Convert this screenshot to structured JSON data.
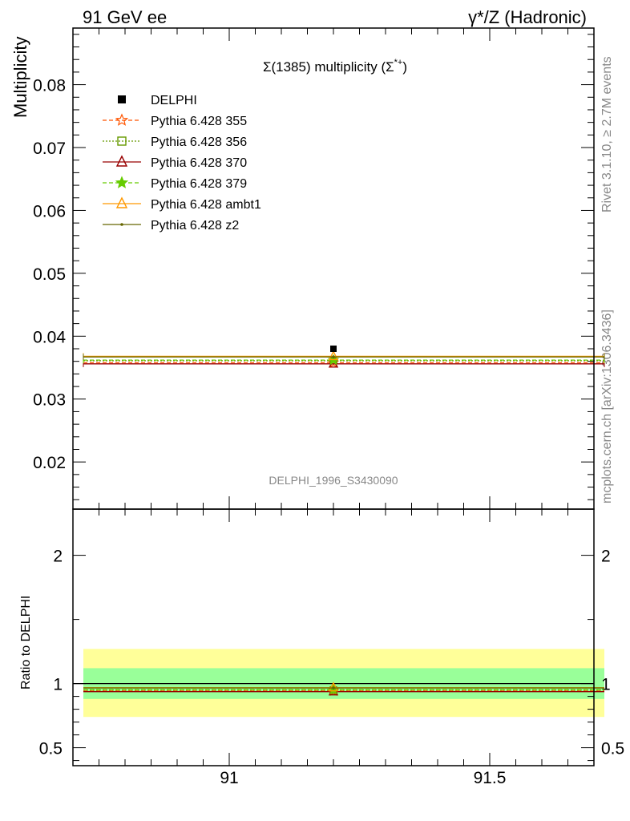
{
  "header": {
    "left": "91 GeV ee",
    "right": "γ*/Z (Hadronic)"
  },
  "side_text": {
    "rivet": "Rivet 3.1.10, ≥ 2.7M events",
    "mcplots": "mcplots.cern.ch [arXiv:1306.3436]"
  },
  "chart_data": {
    "type": "scatter",
    "title": "Σ(1385) multiplicity (Σ*+)",
    "title_main": "Σ(1385) multiplicity (Σ",
    "title_sup": "*+",
    "title_close": ")",
    "analysis_id": "DELPHI_1996_S3430090",
    "xlim": [
      90.7,
      91.7
    ],
    "ylabel": "Multiplicity",
    "ylim": [
      0.0125,
      0.089
    ],
    "yticks": [
      0.02,
      0.03,
      0.04,
      0.05,
      0.06,
      0.07,
      0.08
    ],
    "ytick_labels": [
      "0.02",
      "0.03",
      "0.04",
      "0.05",
      "0.06",
      "0.07",
      "0.08"
    ],
    "xticks": [
      91,
      91.5
    ],
    "xtick_labels": [
      "91",
      "91.5"
    ],
    "data": {
      "name": "DELPHI",
      "x": 91.2,
      "y": 0.038,
      "marker": "square",
      "color": "#000000"
    },
    "series": [
      {
        "name": "Pythia 6.428 355",
        "x_range": [
          90.72,
          91.72
        ],
        "y": 0.0358,
        "color": "#ff5500",
        "dash": "5,3",
        "marker": "star-open"
      },
      {
        "name": "Pythia 6.428 356",
        "x_range": [
          90.72,
          91.72
        ],
        "y": 0.0361,
        "color": "#669900",
        "dash": "2,2",
        "marker": "square-open"
      },
      {
        "name": "Pythia 6.428 370",
        "x_range": [
          90.72,
          91.72
        ],
        "y": 0.0356,
        "color": "#990000",
        "dash": "",
        "marker": "triangle-open"
      },
      {
        "name": "Pythia 6.428 379",
        "x_range": [
          90.72,
          91.72
        ],
        "y": 0.0362,
        "color": "#66cc00",
        "dash": "5,3",
        "marker": "star-filled"
      },
      {
        "name": "Pythia 6.428 ambt1",
        "x_range": [
          90.72,
          91.72
        ],
        "y": 0.0368,
        "color": "#ff9900",
        "dash": "",
        "marker": "triangle-open"
      },
      {
        "name": "Pythia 6.428 z2",
        "x_range": [
          90.72,
          91.72
        ],
        "y": 0.0367,
        "color": "#666600",
        "dash": "",
        "marker": "dot"
      }
    ],
    "ratio": {
      "ylabel": "Ratio to DELPHI",
      "ylim": [
        0.36,
        2.36
      ],
      "yticks": [
        0.5,
        1,
        2
      ],
      "ytick_labels": [
        "0.5",
        "1",
        "2"
      ],
      "band_inner": [
        0.88,
        1.12
      ],
      "band_outer": [
        0.74,
        1.27
      ],
      "band_inner_color": "#99ff99",
      "band_outer_color": "#ffff99",
      "values": [
        0.942,
        0.95,
        0.937,
        0.953,
        0.968,
        0.966
      ]
    }
  }
}
